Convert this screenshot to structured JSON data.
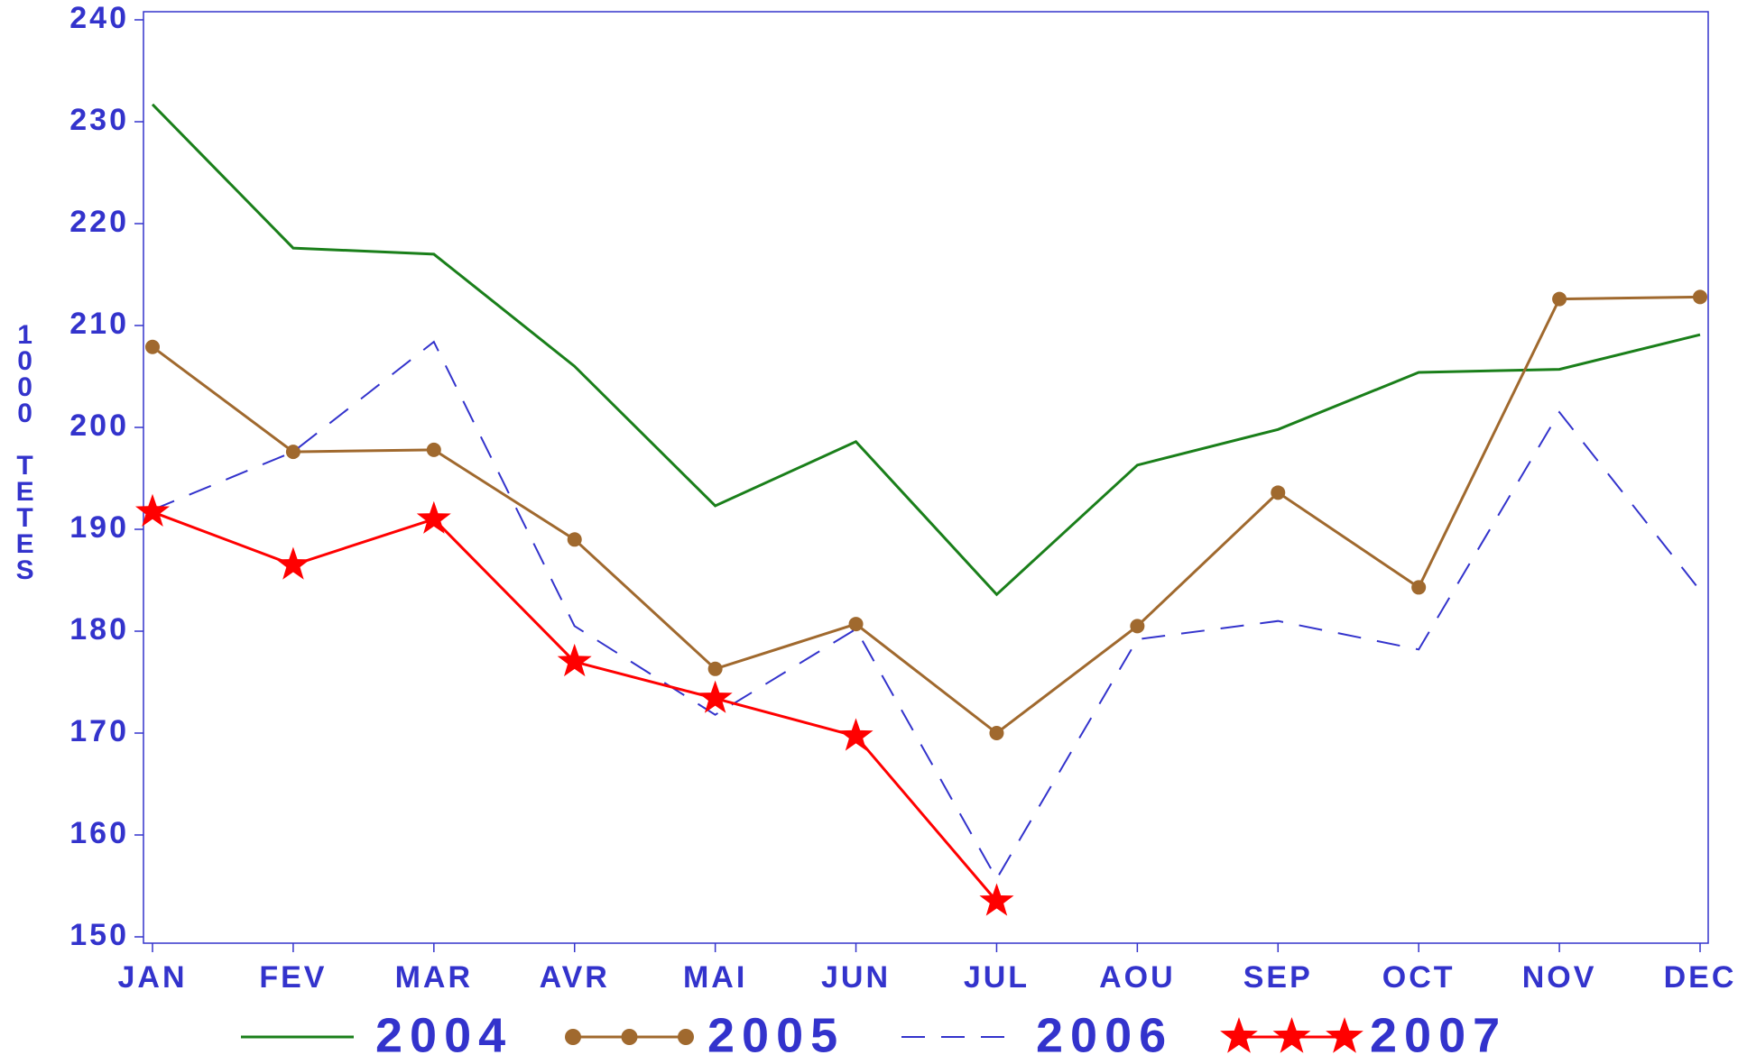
{
  "chart_data": {
    "type": "line",
    "y_label": "1000 TETES",
    "categories": [
      "JAN",
      "FEV",
      "MAR",
      "AVR",
      "MAI",
      "JUN",
      "JUL",
      "AOU",
      "SEP",
      "OCT",
      "NOV",
      "DEC"
    ],
    "series": [
      {
        "name": "2004",
        "color": "#1a7f1a",
        "marker": "none",
        "dash": false,
        "values": [
          231.7,
          217.6,
          217.0,
          206.0,
          192.3,
          198.6,
          183.6,
          196.3,
          199.8,
          205.4,
          205.7,
          209.1
        ]
      },
      {
        "name": "2005",
        "color": "#a0692e",
        "marker": "circle",
        "dash": false,
        "values": [
          207.9,
          197.6,
          197.8,
          189.0,
          176.3,
          180.7,
          170.0,
          180.5,
          193.6,
          184.3,
          212.6,
          212.8
        ]
      },
      {
        "name": "2006",
        "color": "#3333cc",
        "marker": "none",
        "dash": true,
        "values": [
          191.9,
          197.6,
          208.4,
          180.5,
          171.8,
          180.2,
          155.7,
          179.2,
          181.0,
          178.2,
          201.5,
          184.0
        ]
      },
      {
        "name": "2007",
        "color": "#ff0000",
        "marker": "star",
        "dash": false,
        "values": [
          191.7,
          186.5,
          191.0,
          177.0,
          173.4,
          169.7,
          153.5,
          null,
          null,
          null,
          null,
          null
        ]
      }
    ],
    "ylim": [
      150,
      240
    ],
    "yticks": [
      150,
      160,
      170,
      180,
      190,
      200,
      210,
      220,
      230,
      240
    ],
    "grid": false,
    "legend": "bottom"
  }
}
